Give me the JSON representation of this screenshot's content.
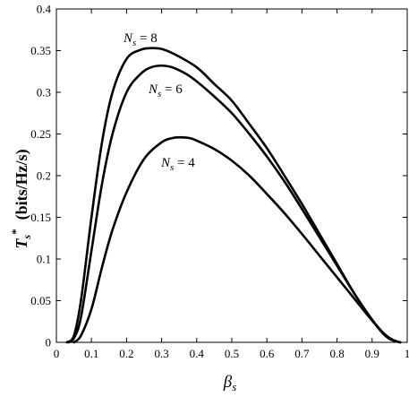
{
  "chart_data": {
    "type": "line",
    "title": "",
    "xlabel": {
      "main": "β",
      "sub": "s"
    },
    "ylabel": {
      "main": "T",
      "sub": "s",
      "sup": "*",
      "units": "(bits/Hz/s)"
    },
    "xlim": [
      0,
      1
    ],
    "ylim": [
      0,
      0.4
    ],
    "xticks": [
      "0",
      "0.1",
      "0.2",
      "0.3",
      "0.4",
      "0.5",
      "0.6",
      "0.7",
      "0.8",
      "0.9",
      "1"
    ],
    "yticks": [
      "0",
      "0.05",
      "0.1",
      "0.15",
      "0.2",
      "0.25",
      "0.3",
      "0.35",
      "0.4"
    ],
    "grid": false,
    "series": [
      {
        "name": "N_s = 8",
        "label": {
          "var": "N",
          "sub": "s",
          "text": " = 8"
        },
        "x": [
          0.03,
          0.05,
          0.07,
          0.1,
          0.13,
          0.16,
          0.2,
          0.24,
          0.27,
          0.3,
          0.34,
          0.4,
          0.45,
          0.5,
          0.55,
          0.6,
          0.65,
          0.7,
          0.75,
          0.8,
          0.85,
          0.9,
          0.93,
          0.95,
          0.97,
          0.98
        ],
        "y": [
          0,
          0.008,
          0.05,
          0.15,
          0.24,
          0.3,
          0.34,
          0.351,
          0.353,
          0.352,
          0.345,
          0.33,
          0.31,
          0.29,
          0.262,
          0.233,
          0.2,
          0.166,
          0.13,
          0.094,
          0.058,
          0.027,
          0.011,
          0.004,
          0.001,
          0
        ]
      },
      {
        "name": "N_s = 6",
        "label": {
          "var": "N",
          "sub": "s",
          "text": " = 6"
        },
        "x": [
          0.035,
          0.05,
          0.07,
          0.1,
          0.13,
          0.16,
          0.2,
          0.24,
          0.27,
          0.3,
          0.33,
          0.37,
          0.4,
          0.45,
          0.5,
          0.55,
          0.6,
          0.65,
          0.7,
          0.75,
          0.8,
          0.85,
          0.9,
          0.93,
          0.95,
          0.97,
          0.98
        ],
        "y": [
          0,
          0.005,
          0.03,
          0.11,
          0.19,
          0.25,
          0.3,
          0.322,
          0.33,
          0.332,
          0.33,
          0.322,
          0.313,
          0.295,
          0.275,
          0.25,
          0.223,
          0.193,
          0.16,
          0.126,
          0.092,
          0.058,
          0.027,
          0.012,
          0.005,
          0.001,
          0
        ]
      },
      {
        "name": "N_s = 4",
        "label": {
          "var": "N",
          "sub": "s",
          "text": " = 4"
        },
        "x": [
          0.05,
          0.07,
          0.1,
          0.13,
          0.16,
          0.2,
          0.25,
          0.3,
          0.33,
          0.35,
          0.38,
          0.4,
          0.45,
          0.5,
          0.55,
          0.6,
          0.65,
          0.7,
          0.75,
          0.8,
          0.85,
          0.9,
          0.93,
          0.95,
          0.97,
          0.98
        ],
        "y": [
          0,
          0.008,
          0.04,
          0.09,
          0.135,
          0.18,
          0.22,
          0.24,
          0.245,
          0.246,
          0.245,
          0.242,
          0.232,
          0.218,
          0.2,
          0.178,
          0.155,
          0.13,
          0.104,
          0.078,
          0.052,
          0.026,
          0.012,
          0.005,
          0.001,
          0
        ]
      }
    ]
  }
}
